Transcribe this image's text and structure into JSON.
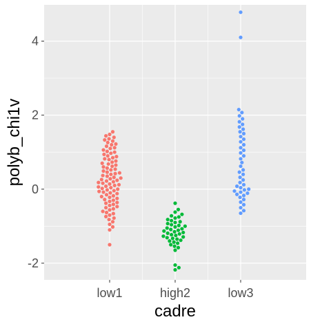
{
  "chart_data": {
    "type": "scatter",
    "subtype": "beeswarm",
    "title": "",
    "xlabel": "cadre",
    "ylabel": "polyb_chi1v",
    "categories": [
      "low1",
      "high2",
      "low3"
    ],
    "ylim": [
      -2.45,
      4.98
    ],
    "yticks": [
      -2,
      0,
      2,
      4
    ],
    "ytick_labels": [
      "-2",
      "0",
      "2",
      "4"
    ],
    "grid": true,
    "legend": "none",
    "series": [
      {
        "category": "low1",
        "color": "#F8766D",
        "values": [
          1.55,
          1.48,
          1.44,
          1.4,
          1.36,
          1.33,
          1.3,
          1.26,
          1.22,
          1.2,
          1.16,
          1.12,
          1.1,
          1.06,
          1.02,
          1.0,
          0.97,
          0.94,
          0.9,
          0.88,
          0.85,
          0.82,
          0.8,
          0.76,
          0.73,
          0.7,
          0.68,
          0.65,
          0.62,
          0.6,
          0.57,
          0.54,
          0.52,
          0.49,
          0.46,
          0.44,
          0.42,
          0.4,
          0.37,
          0.35,
          0.32,
          0.3,
          0.28,
          0.26,
          0.24,
          0.22,
          0.2,
          0.18,
          0.16,
          0.14,
          0.12,
          0.1,
          0.08,
          0.06,
          0.04,
          0.02,
          0.0,
          -0.02,
          -0.04,
          -0.06,
          -0.08,
          -0.1,
          -0.12,
          -0.15,
          -0.18,
          -0.2,
          -0.22,
          -0.25,
          -0.28,
          -0.3,
          -0.33,
          -0.36,
          -0.38,
          -0.41,
          -0.44,
          -0.47,
          -0.5,
          -0.53,
          -0.56,
          -0.6,
          -0.63,
          -0.66,
          -0.7,
          -0.74,
          -0.78,
          -0.82,
          -0.88,
          -0.95,
          -1.02,
          -1.1,
          -1.5
        ]
      },
      {
        "category": "high2",
        "color": "#00BA38",
        "values": [
          -0.38,
          -0.55,
          -0.62,
          -0.68,
          -0.72,
          -0.75,
          -0.78,
          -0.82,
          -0.85,
          -0.88,
          -0.9,
          -0.93,
          -0.96,
          -0.98,
          -1.0,
          -1.02,
          -1.05,
          -1.07,
          -1.09,
          -1.11,
          -1.13,
          -1.15,
          -1.17,
          -1.19,
          -1.21,
          -1.23,
          -1.25,
          -1.27,
          -1.29,
          -1.31,
          -1.33,
          -1.35,
          -1.38,
          -1.4,
          -1.43,
          -1.46,
          -1.5,
          -1.54,
          -1.58,
          -1.65,
          -2.05,
          -2.12,
          -2.18
        ]
      },
      {
        "category": "low3",
        "color": "#619CFF",
        "values": [
          4.78,
          4.1,
          2.15,
          2.07,
          1.98,
          1.9,
          1.82,
          1.75,
          1.68,
          1.62,
          1.55,
          1.5,
          1.42,
          1.35,
          1.28,
          1.2,
          1.12,
          1.05,
          0.98,
          0.9,
          0.82,
          0.72,
          0.62,
          0.52,
          0.46,
          0.4,
          0.32,
          0.25,
          0.18,
          0.12,
          0.08,
          0.04,
          0.0,
          -0.02,
          -0.05,
          -0.08,
          -0.11,
          -0.14,
          -0.17,
          -0.22,
          -0.28,
          -0.35,
          -0.42,
          -0.5,
          -0.58,
          -0.65
        ]
      }
    ]
  }
}
